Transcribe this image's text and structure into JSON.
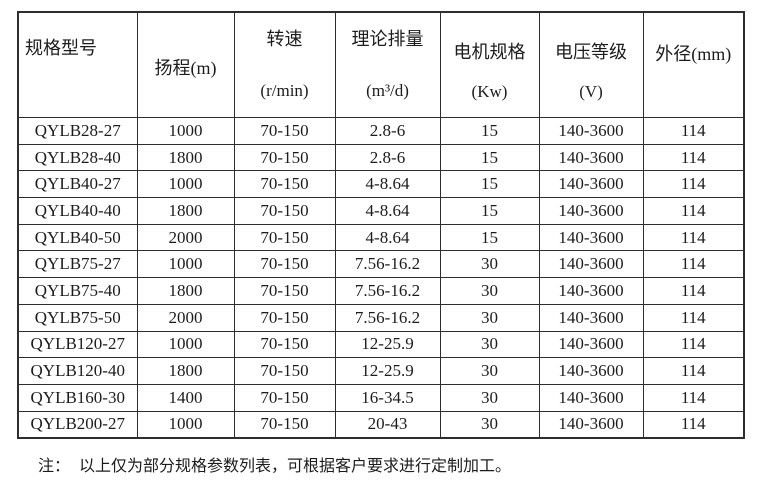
{
  "page": {
    "background": "#ffffff",
    "border_color": "#2e2e2e",
    "text_color": "#1c1c1c"
  },
  "table": {
    "headers": [
      {
        "line1": "规格型号"
      },
      {
        "line1": "扬程(m)"
      },
      {
        "line1": "转速",
        "line2": "(r/min)"
      },
      {
        "line1": "理论排量",
        "line2": "(m³/d)"
      },
      {
        "line1": "电机规格",
        "line2": "(Kw)"
      },
      {
        "line1": "电压等级",
        "line2": "(V)"
      },
      {
        "line1": "外径(mm)"
      }
    ],
    "rows": [
      [
        "QYLB28-27",
        "1000",
        "70-150",
        "2.8-6",
        "15",
        "140-3600",
        "114"
      ],
      [
        "QYLB28-40",
        "1800",
        "70-150",
        "2.8-6",
        "15",
        "140-3600",
        "114"
      ],
      [
        "QYLB40-27",
        "1000",
        "70-150",
        "4-8.64",
        "15",
        "140-3600",
        "114"
      ],
      [
        "QYLB40-40",
        "1800",
        "70-150",
        "4-8.64",
        "15",
        "140-3600",
        "114"
      ],
      [
        "QYLB40-50",
        "2000",
        "70-150",
        "4-8.64",
        "15",
        "140-3600",
        "114"
      ],
      [
        "QYLB75-27",
        "1000",
        "70-150",
        "7.56-16.2",
        "30",
        "140-3600",
        "114"
      ],
      [
        "QYLB75-40",
        "1800",
        "70-150",
        "7.56-16.2",
        "30",
        "140-3600",
        "114"
      ],
      [
        "QYLB75-50",
        "2000",
        "70-150",
        "7.56-16.2",
        "30",
        "140-3600",
        "114"
      ],
      [
        "QYLB120-27",
        "1000",
        "70-150",
        "12-25.9",
        "30",
        "140-3600",
        "114"
      ],
      [
        "QYLB120-40",
        "1800",
        "70-150",
        "12-25.9",
        "30",
        "140-3600",
        "114"
      ],
      [
        "QYLB160-30",
        "1400",
        "70-150",
        "16-34.5",
        "30",
        "140-3600",
        "114"
      ],
      [
        "QYLB200-27",
        "1000",
        "70-150",
        "20-43",
        "30",
        "140-3600",
        "114"
      ]
    ]
  },
  "note": {
    "prefix": "注：",
    "text": "以上仅为部分规格参数列表，可根据客户要求进行定制加工。"
  }
}
